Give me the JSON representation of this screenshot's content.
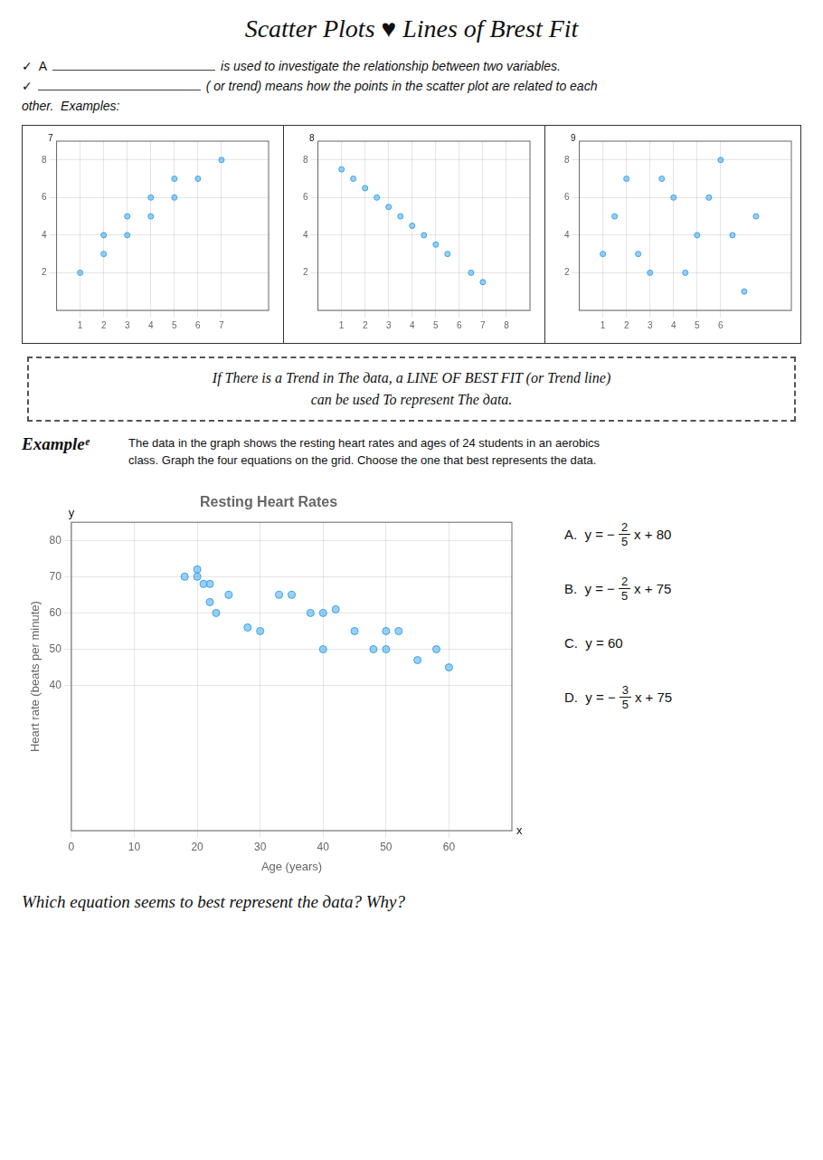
{
  "title": "Scatter Plots ♥ Lines of Brest Fit",
  "annotations": [
    [
      [
        "✓  A",
        "is used to investigate the relationship between two variables."
      ],
      [
        "✓",
        "( or trend) means how the points in the scatter plot are related to each"
      ],
      [
        "other.  Examples:"
      ]
    ],
    [
      "If There is a Trend in The дata, a LINE OF BEST FIT (or Trend line)",
      "can be used To represent The дata."
    ],
    [
      "Exampleᵉ",
      "The data in the graph shows the resting heart rates and ages of 24 students in an aerobics",
      "class.  Graph the four equations on the grid.  Choose the one that best represents the data."
    ],
    [
      [
        "A.  y = −",
        "2",
        "5",
        "x + 80"
      ],
      [
        "B.  y = −",
        "2",
        "5",
        "x + 75"
      ],
      [
        "C.  y = 60"
      ],
      [
        "D.  y = −",
        "3",
        "5",
        "x + 75"
      ]
    ],
    [
      "Which equation seems to best represent the дata?  Why?"
    ]
  ],
  "chart_data": [
    {
      "type": "scatter",
      "x": [
        1,
        2,
        2,
        3,
        3,
        4,
        4,
        5,
        5,
        6,
        7
      ],
      "values": [
        2,
        3,
        4,
        4,
        5,
        5,
        6,
        6,
        7,
        7,
        8
      ],
      "xlim": [
        0,
        9
      ],
      "ylim": [
        0,
        9
      ],
      "xticks": [
        1,
        2,
        3,
        4,
        5,
        6,
        7
      ],
      "yticks": [
        2,
        4,
        6,
        8
      ],
      "grid": true,
      "annotations": [
        "7"
      ]
    },
    {
      "type": "scatter",
      "x": [
        1,
        1.5,
        2,
        2.5,
        3,
        3.5,
        4,
        4.5,
        5,
        5.5,
        6.5,
        7
      ],
      "values": [
        7.5,
        7,
        6.5,
        6,
        5.5,
        5,
        4.5,
        4,
        3.5,
        3,
        2,
        1.5
      ],
      "xlim": [
        0,
        9
      ],
      "ylim": [
        0,
        9
      ],
      "xticks": [
        1,
        2,
        3,
        4,
        5,
        6,
        7,
        8
      ],
      "yticks": [
        2,
        4,
        6,
        8
      ],
      "grid": true,
      "annotations": [
        "8"
      ]
    },
    {
      "type": "scatter",
      "x": [
        1,
        2,
        3,
        4,
        5,
        6,
        7,
        1.5,
        2.5,
        3.5,
        4.5,
        5.5,
        6.5,
        7.5
      ],
      "values": [
        3,
        7,
        2,
        6,
        4,
        8,
        1,
        5,
        3,
        7,
        2,
        6,
        4,
        5
      ],
      "xlim": [
        0,
        9
      ],
      "ylim": [
        0,
        9
      ],
      "xticks": [
        1,
        2,
        3,
        4,
        5,
        6
      ],
      "yticks": [
        2,
        4,
        6,
        8
      ],
      "grid": true,
      "annotations": [
        "9"
      ]
    },
    {
      "type": "scatter",
      "title": "Resting Heart Rates",
      "xlabel": "Age (years)",
      "ylabel": "Heart rate (beats per minute)",
      "x": [
        18,
        20,
        20,
        21,
        22,
        22,
        23,
        25,
        28,
        30,
        33,
        35,
        38,
        40,
        40,
        42,
        45,
        48,
        50,
        50,
        52,
        55,
        58,
        60
      ],
      "values": [
        70,
        72,
        70,
        68,
        68,
        63,
        60,
        65,
        56,
        55,
        65,
        65,
        60,
        60,
        50,
        61,
        55,
        50,
        55,
        50,
        55,
        47,
        50,
        45
      ],
      "xlim": [
        0,
        70
      ],
      "ylim": [
        0,
        85
      ],
      "xticks": [
        0,
        10,
        20,
        30,
        40,
        50,
        60
      ],
      "yticks": [
        40,
        50,
        60,
        70,
        80
      ],
      "grid": true,
      "annotations": [
        "x",
        "y"
      ]
    }
  ]
}
